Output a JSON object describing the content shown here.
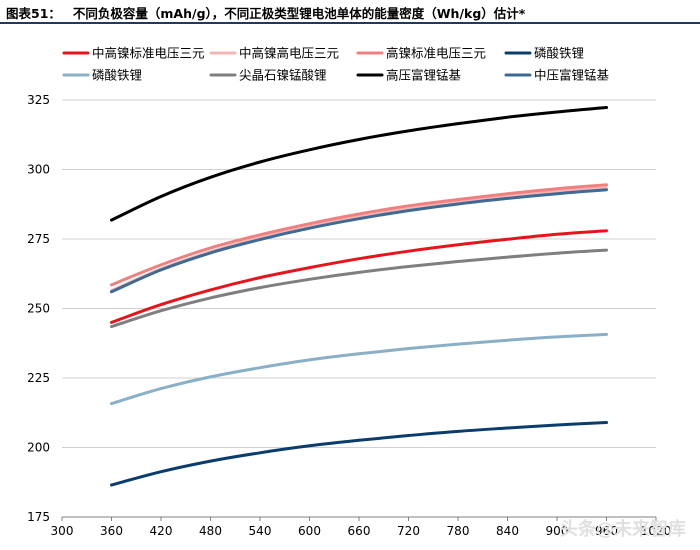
{
  "title": {
    "prefix": "图表51：",
    "text": "不同负极容量（mAh/g），不同正极类型锂电池单体的能量密度（Wh/kg）估计*"
  },
  "watermark": "头条@未来智库",
  "chart_data": {
    "type": "line",
    "title": "不同负极容量（mAh/g），不同正极类型锂电池单体的能量密度（Wh/kg）估计*",
    "xlabel": "",
    "ylabel": "",
    "xlim": [
      300,
      1020
    ],
    "ylim": [
      175,
      325
    ],
    "x_ticks": [
      300,
      360,
      420,
      480,
      540,
      600,
      660,
      720,
      780,
      840,
      900,
      960,
      1020
    ],
    "x_tick_labels": [
      "300",
      "360",
      "420",
      "480",
      "540",
      "600",
      "660",
      "720",
      "780",
      "840",
      "900",
      "960",
      "1020"
    ],
    "y_ticks": [
      175,
      200,
      225,
      250,
      275,
      300,
      325
    ],
    "grid": "horizontal",
    "legend_position": "top",
    "x": [
      360,
      420,
      480,
      540,
      600,
      660,
      720,
      780,
      840,
      900,
      960
    ],
    "series": [
      {
        "name": "中高镍标准电压三元",
        "color": "#e8141c",
        "width": 3,
        "values": [
          245,
          251.4,
          256.7,
          261.1,
          264.7,
          267.9,
          270.6,
          272.9,
          274.9,
          276.7,
          278
        ]
      },
      {
        "name": "中高镍高电压三元",
        "color": "#f6b4b4",
        "width": 2.5,
        "values": [
          256.5,
          264.3,
          270.5,
          275.5,
          279.6,
          283.1,
          285.9,
          288.4,
          290.4,
          292.2,
          293.5
        ]
      },
      {
        "name": "高镍标准电压三元",
        "color": "#f08080",
        "width": 3,
        "values": [
          258.5,
          265.7,
          271.8,
          276.5,
          280.5,
          284,
          286.9,
          289.2,
          291.3,
          293.1,
          294.5
        ]
      },
      {
        "name": "磷酸铁锂",
        "color": "#0b3c6e",
        "width": 3,
        "values": [
          186.5,
          191.3,
          195.1,
          198.1,
          200.6,
          202.6,
          204.3,
          205.8,
          207,
          208.1,
          209
        ]
      },
      {
        "name": "磷酸铁锂",
        "color": "#8ab0c8",
        "width": 3,
        "values": [
          215.8,
          221.2,
          225.4,
          228.7,
          231.5,
          233.7,
          235.6,
          237.2,
          238.6,
          239.8,
          240.7
        ]
      },
      {
        "name": "尖晶石镍锰酸锂",
        "color": "#7f7f7f",
        "width": 3,
        "values": [
          243.5,
          249.2,
          253.8,
          257.5,
          260.5,
          263,
          265.1,
          266.9,
          268.5,
          269.9,
          271
        ]
      },
      {
        "name": "高压富锂锰基",
        "color": "#000000",
        "width": 3,
        "values": [
          281.8,
          290.3,
          297.2,
          302.7,
          307.1,
          310.8,
          313.9,
          316.5,
          318.8,
          320.7,
          322.3
        ]
      },
      {
        "name": "中压富锂锰基",
        "color": "#3e6a96",
        "width": 3,
        "values": [
          256,
          263.9,
          270,
          274.8,
          278.9,
          282.3,
          285.2,
          287.6,
          289.6,
          291.3,
          292.7
        ]
      }
    ]
  }
}
